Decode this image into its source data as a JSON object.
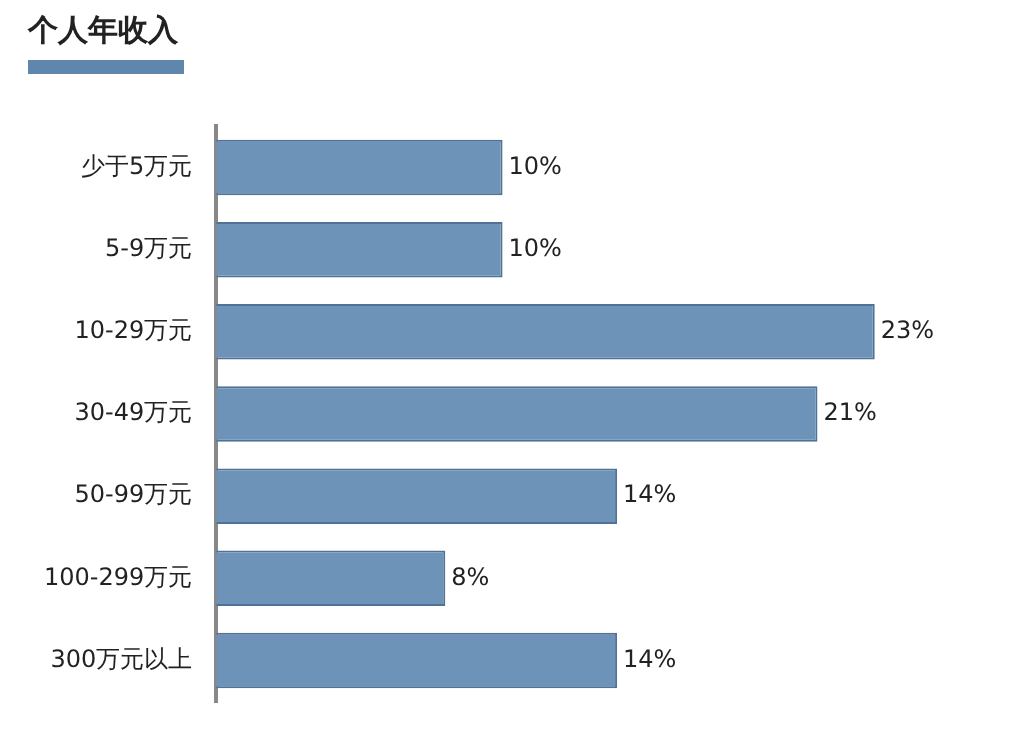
{
  "chart_data": {
    "type": "bar",
    "orientation": "horizontal",
    "title": "个人年收入",
    "categories": [
      "少于5万元",
      "5-9万元",
      "10-29万元",
      "30-49万元",
      "50-99万元",
      "100-299万元",
      "300万元以上"
    ],
    "values": [
      10,
      10,
      23,
      21,
      14,
      8,
      14
    ],
    "value_labels": [
      "10%",
      "10%",
      "23%",
      "21%",
      "14%",
      "8%",
      "14%"
    ],
    "color": "#6e93b8",
    "grid": false,
    "legend": false
  }
}
